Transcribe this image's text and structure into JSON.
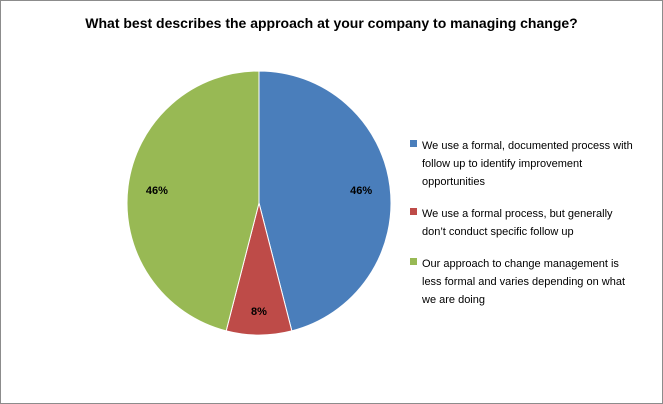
{
  "chart_data": {
    "type": "pie",
    "title": "What best describes the approach at your company to managing change?",
    "series": [
      {
        "label": "We use a formal, documented process with\nfollow up to identify improvement\nopportunities",
        "value": 46,
        "data_label": "46%",
        "color": "#4a7ebb"
      },
      {
        "label": "We use a formal process, but generally\ndon’t conduct specific follow up",
        "value": 8,
        "data_label": "8%",
        "color": "#be4b48"
      },
      {
        "label": "Our approach to change management is\nless formal and varies depending on what\nwe are doing",
        "value": 46,
        "data_label": "46%",
        "color": "#98b954"
      }
    ],
    "legend_position": "right",
    "start_angle": "12 o'clock",
    "direction": "clockwise"
  }
}
